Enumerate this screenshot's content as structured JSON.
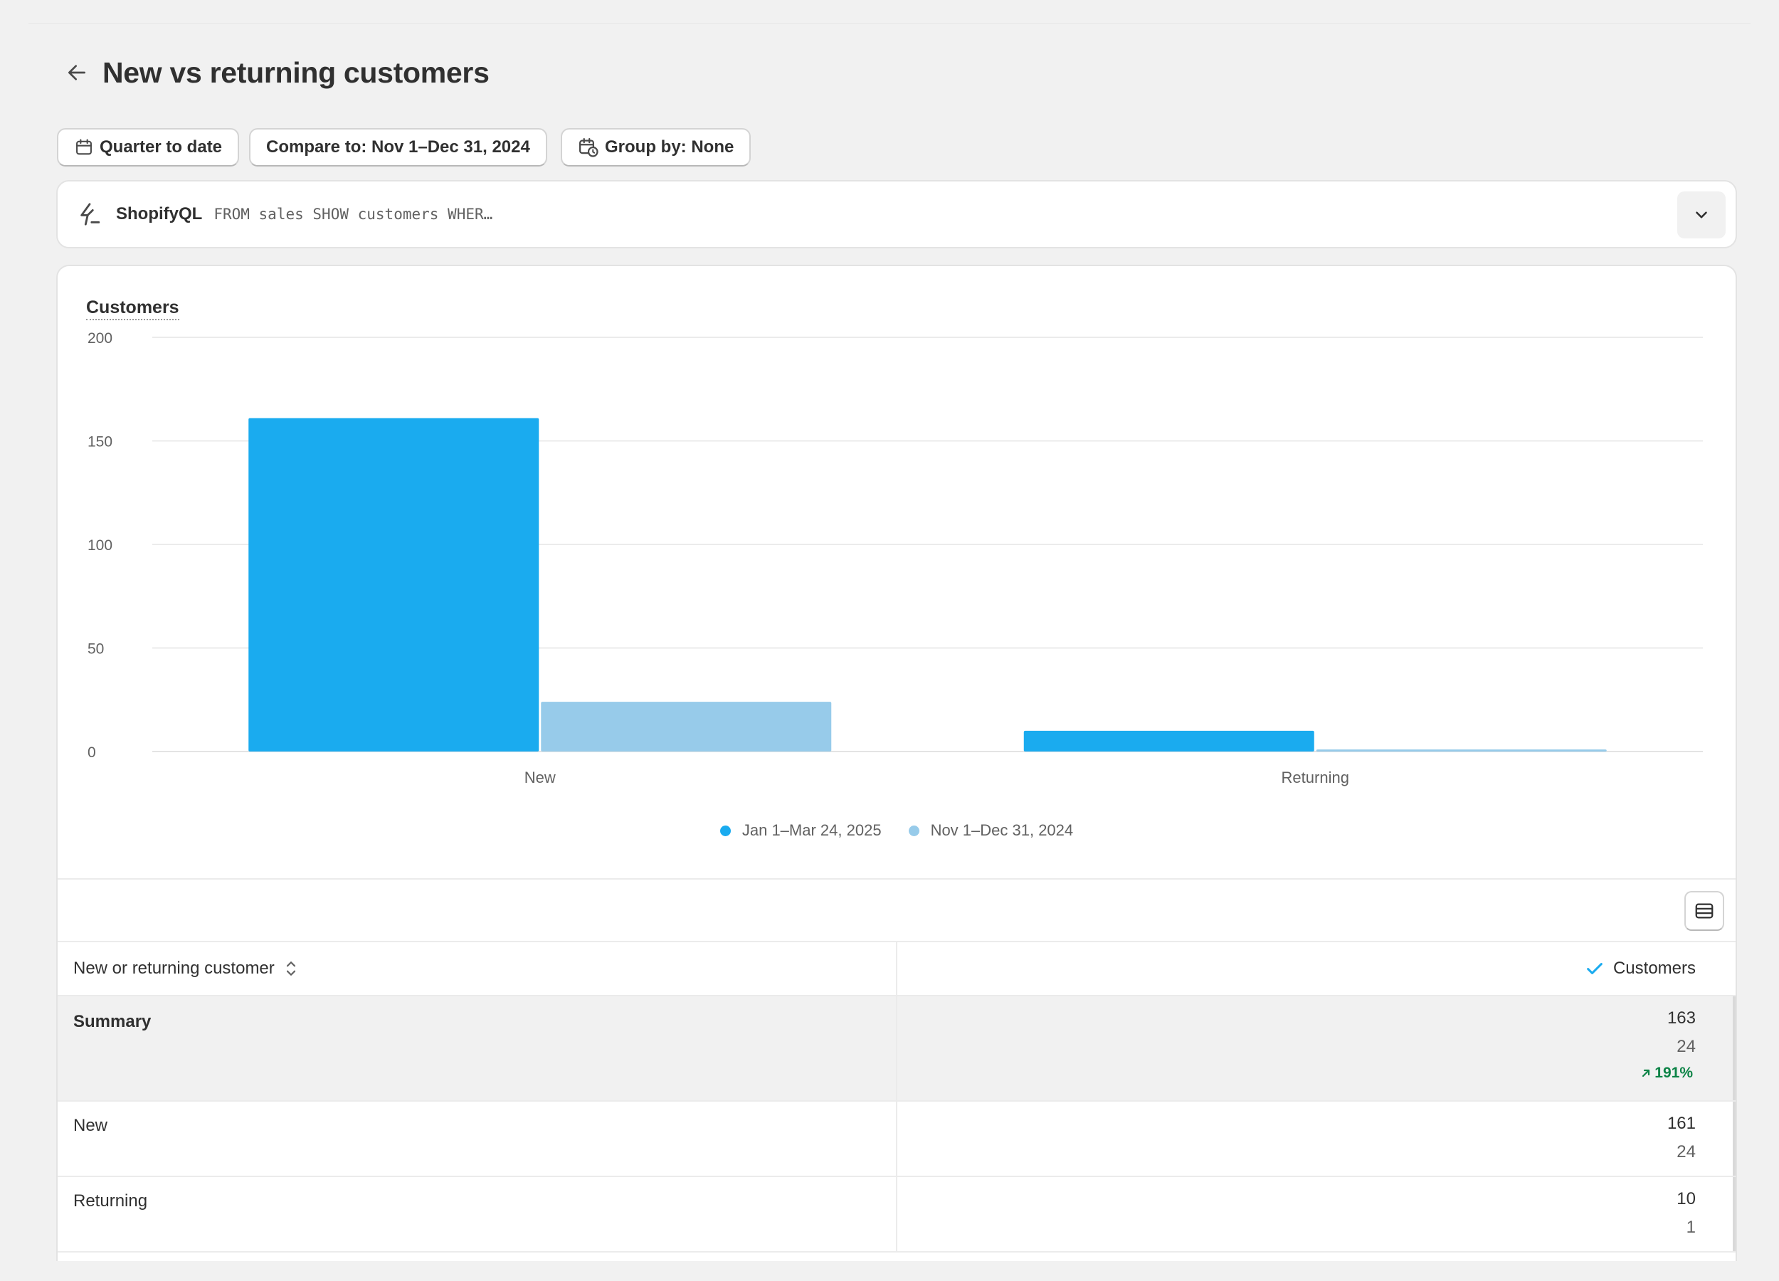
{
  "page": {
    "title": "New vs returning customers"
  },
  "filters": {
    "date_range": "Quarter to date",
    "compare_to": "Compare to: Nov 1–Dec 31, 2024",
    "group_by": "Group by: None"
  },
  "shopifyql": {
    "label": "ShopifyQL",
    "query": "FROM sales SHOW customers WHER…"
  },
  "metric": {
    "label": "Customers"
  },
  "chart_data": {
    "type": "bar",
    "categories": [
      "New",
      "Returning"
    ],
    "series": [
      {
        "name": "Jan 1–Mar 24, 2025",
        "values": [
          161,
          10
        ],
        "color": "#1aabef"
      },
      {
        "name": "Nov 1–Dec 31, 2024",
        "values": [
          24,
          1
        ],
        "color": "#97cbea"
      }
    ],
    "ylim": [
      0,
      200
    ],
    "yticks": [
      0,
      50,
      100,
      150,
      200
    ],
    "grid": true,
    "legend": "bottom-center"
  },
  "table": {
    "col1_header": "New or returning customer",
    "col2_header": "Customers",
    "summary": {
      "label": "Summary",
      "current": "163",
      "previous": "24",
      "change": "191%"
    },
    "rows": [
      {
        "label": "New",
        "current": "161",
        "previous": "24"
      },
      {
        "label": "Returning",
        "current": "10",
        "previous": "1"
      }
    ]
  },
  "colors": {
    "accent": "#1aabef",
    "compare": "#97cbea",
    "positive": "#0c8346"
  }
}
